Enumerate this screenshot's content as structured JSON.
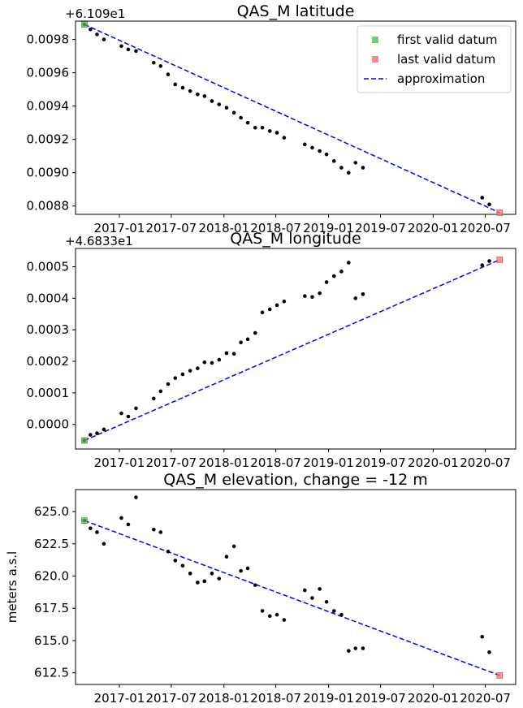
{
  "chart_data": [
    {
      "type": "scatter",
      "title": "QAS_M latitude",
      "offset_label": "+6.109e1",
      "ylabel": "",
      "xlabel": "",
      "ylim": [
        0.00875,
        0.00991
      ],
      "xlim": [
        "2016-08-01",
        "2020-10-15"
      ],
      "x_ticks": [
        "2017-01",
        "2017-07",
        "2018-01",
        "2018-07",
        "2019-01",
        "2019-07",
        "2020-01",
        "2020-07"
      ],
      "y_ticks": [
        0.0088,
        0.009,
        0.0092,
        0.0094,
        0.0096,
        0.0098
      ],
      "y_tick_labels": [
        "0.0088",
        "0.0090",
        "0.0092",
        "0.0094",
        "0.0096",
        "0.0098"
      ],
      "legend": {
        "placement": "top-right",
        "entries": [
          {
            "label": "first valid datum",
            "color": "#5cb85c",
            "marker": "square"
          },
          {
            "label": "last valid datum",
            "color": "#f07070",
            "marker": "square"
          },
          {
            "label": "approximation",
            "color": "#0000ff",
            "marker": "dashed-line"
          }
        ]
      },
      "first_valid": {
        "x": "2016-09-01",
        "y": 0.00989
      },
      "last_valid": {
        "x": "2020-08-20",
        "y": 0.00876
      },
      "approximation": [
        {
          "x": "2016-09-01",
          "y": 0.00989
        },
        {
          "x": "2020-08-20",
          "y": 0.00876
        }
      ],
      "points": [
        {
          "x": "2016-09-01",
          "y": 0.00989
        },
        {
          "x": "2016-09-22",
          "y": 0.00986
        },
        {
          "x": "2016-10-15",
          "y": 0.00983
        },
        {
          "x": "2016-11-08",
          "y": 0.0098
        },
        {
          "x": "2017-01-08",
          "y": 0.00976
        },
        {
          "x": "2017-02-01",
          "y": 0.00974
        },
        {
          "x": "2017-02-28",
          "y": 0.00973
        },
        {
          "x": "2017-05-01",
          "y": 0.00966
        },
        {
          "x": "2017-05-25",
          "y": 0.00964
        },
        {
          "x": "2017-06-20",
          "y": 0.00959
        },
        {
          "x": "2017-07-15",
          "y": 0.00953
        },
        {
          "x": "2017-08-10",
          "y": 0.00951
        },
        {
          "x": "2017-09-05",
          "y": 0.00949
        },
        {
          "x": "2017-10-01",
          "y": 0.00947
        },
        {
          "x": "2017-10-25",
          "y": 0.00946
        },
        {
          "x": "2017-11-20",
          "y": 0.00943
        },
        {
          "x": "2017-12-15",
          "y": 0.00941
        },
        {
          "x": "2018-01-10",
          "y": 0.00939
        },
        {
          "x": "2018-02-05",
          "y": 0.00936
        },
        {
          "x": "2018-03-01",
          "y": 0.00933
        },
        {
          "x": "2018-03-25",
          "y": 0.0093
        },
        {
          "x": "2018-04-20",
          "y": 0.00927
        },
        {
          "x": "2018-05-15",
          "y": 0.00927
        },
        {
          "x": "2018-06-10",
          "y": 0.00925
        },
        {
          "x": "2018-07-05",
          "y": 0.00924
        },
        {
          "x": "2018-07-30",
          "y": 0.00921
        },
        {
          "x": "2018-10-10",
          "y": 0.00917
        },
        {
          "x": "2018-11-05",
          "y": 0.00915
        },
        {
          "x": "2018-12-01",
          "y": 0.00913
        },
        {
          "x": "2018-12-25",
          "y": 0.00911
        },
        {
          "x": "2019-01-20",
          "y": 0.00907
        },
        {
          "x": "2019-02-15",
          "y": 0.00903
        },
        {
          "x": "2019-03-12",
          "y": 0.009
        },
        {
          "x": "2019-04-05",
          "y": 0.00906
        },
        {
          "x": "2019-05-01",
          "y": 0.00903
        },
        {
          "x": "2020-06-20",
          "y": 0.00885
        },
        {
          "x": "2020-07-15",
          "y": 0.00881
        }
      ]
    },
    {
      "type": "scatter",
      "title": "QAS_M longitude",
      "offset_label": "+4.6833e1",
      "ylabel": "",
      "xlabel": "",
      "ylim": [
        -7.8e-05,
        0.000558
      ],
      "xlim": [
        "2016-08-01",
        "2020-10-15"
      ],
      "x_ticks": [
        "2017-01",
        "2017-07",
        "2018-01",
        "2018-07",
        "2019-01",
        "2019-07",
        "2020-01",
        "2020-07"
      ],
      "y_ticks": [
        0.0,
        0.0001,
        0.0002,
        0.0003,
        0.0004,
        0.0005
      ],
      "y_tick_labels": [
        "0.0000",
        "0.0001",
        "0.0002",
        "0.0003",
        "0.0004",
        "0.0005"
      ],
      "first_valid": {
        "x": "2016-09-01",
        "y": -5.1e-05
      },
      "last_valid": {
        "x": "2020-08-20",
        "y": 0.000522
      },
      "approximation": [
        {
          "x": "2016-09-01",
          "y": -5.1e-05
        },
        {
          "x": "2020-08-20",
          "y": 0.000522
        }
      ],
      "points": [
        {
          "x": "2016-09-01",
          "y": -5.1e-05
        },
        {
          "x": "2016-09-22",
          "y": -3.3e-05
        },
        {
          "x": "2016-10-15",
          "y": -2.8e-05
        },
        {
          "x": "2016-11-08",
          "y": -1.6e-05
        },
        {
          "x": "2017-01-08",
          "y": 3.5e-05
        },
        {
          "x": "2017-02-01",
          "y": 2.5e-05
        },
        {
          "x": "2017-02-28",
          "y": 5.1e-05
        },
        {
          "x": "2017-05-01",
          "y": 8.2e-05
        },
        {
          "x": "2017-05-25",
          "y": 0.000105
        },
        {
          "x": "2017-06-20",
          "y": 0.000128
        },
        {
          "x": "2017-07-15",
          "y": 0.000147
        },
        {
          "x": "2017-08-10",
          "y": 0.000159
        },
        {
          "x": "2017-09-05",
          "y": 0.00017
        },
        {
          "x": "2017-10-01",
          "y": 0.000178
        },
        {
          "x": "2017-10-25",
          "y": 0.000197
        },
        {
          "x": "2017-11-20",
          "y": 0.000195
        },
        {
          "x": "2017-12-15",
          "y": 0.000205
        },
        {
          "x": "2018-01-10",
          "y": 0.000226
        },
        {
          "x": "2018-02-05",
          "y": 0.000224
        },
        {
          "x": "2018-03-01",
          "y": 0.00026
        },
        {
          "x": "2018-03-25",
          "y": 0.00027
        },
        {
          "x": "2018-04-20",
          "y": 0.00029
        },
        {
          "x": "2018-05-15",
          "y": 0.000355
        },
        {
          "x": "2018-06-10",
          "y": 0.000365
        },
        {
          "x": "2018-07-05",
          "y": 0.000378
        },
        {
          "x": "2018-07-30",
          "y": 0.00039
        },
        {
          "x": "2018-10-10",
          "y": 0.000407
        },
        {
          "x": "2018-11-05",
          "y": 0.000404
        },
        {
          "x": "2018-12-01",
          "y": 0.000416
        },
        {
          "x": "2018-12-25",
          "y": 0.000451
        },
        {
          "x": "2019-01-20",
          "y": 0.00047
        },
        {
          "x": "2019-02-15",
          "y": 0.000485
        },
        {
          "x": "2019-03-12",
          "y": 0.000513
        },
        {
          "x": "2019-04-05",
          "y": 0.0004
        },
        {
          "x": "2019-05-01",
          "y": 0.000413
        },
        {
          "x": "2020-06-20",
          "y": 0.000505
        },
        {
          "x": "2020-07-15",
          "y": 0.000518
        }
      ]
    },
    {
      "type": "scatter",
      "title": "QAS_M elevation, change = -12 m",
      "offset_label": "",
      "ylabel": "meters a.s.l",
      "xlabel": "",
      "ylim": [
        611.6,
        626.7
      ],
      "xlim": [
        "2016-08-01",
        "2020-10-15"
      ],
      "x_ticks": [
        "2017-01",
        "2017-07",
        "2018-01",
        "2018-07",
        "2019-01",
        "2019-07",
        "2020-01",
        "2020-07"
      ],
      "y_ticks": [
        612.5,
        615.0,
        617.5,
        620.0,
        622.5,
        625.0
      ],
      "y_tick_labels": [
        "612.5",
        "615.0",
        "617.5",
        "620.0",
        "622.5",
        "625.0"
      ],
      "first_valid": {
        "x": "2016-09-01",
        "y": 624.3
      },
      "last_valid": {
        "x": "2020-08-20",
        "y": 612.3
      },
      "approximation": [
        {
          "x": "2016-09-01",
          "y": 624.3
        },
        {
          "x": "2020-08-20",
          "y": 612.3
        }
      ],
      "points": [
        {
          "x": "2016-09-01",
          "y": 624.3
        },
        {
          "x": "2016-09-22",
          "y": 623.7
        },
        {
          "x": "2016-10-15",
          "y": 623.4
        },
        {
          "x": "2016-11-08",
          "y": 622.5
        },
        {
          "x": "2017-01-08",
          "y": 624.5
        },
        {
          "x": "2017-02-01",
          "y": 624.0
        },
        {
          "x": "2017-02-28",
          "y": 626.1
        },
        {
          "x": "2017-05-01",
          "y": 623.6
        },
        {
          "x": "2017-05-25",
          "y": 623.4
        },
        {
          "x": "2017-06-20",
          "y": 621.9
        },
        {
          "x": "2017-07-15",
          "y": 621.2
        },
        {
          "x": "2017-08-10",
          "y": 620.8
        },
        {
          "x": "2017-09-05",
          "y": 620.2
        },
        {
          "x": "2017-10-01",
          "y": 619.5
        },
        {
          "x": "2017-10-25",
          "y": 619.6
        },
        {
          "x": "2017-11-20",
          "y": 620.2
        },
        {
          "x": "2017-12-15",
          "y": 619.8
        },
        {
          "x": "2018-01-10",
          "y": 621.5
        },
        {
          "x": "2018-02-05",
          "y": 622.3
        },
        {
          "x": "2018-03-01",
          "y": 620.4
        },
        {
          "x": "2018-03-25",
          "y": 620.6
        },
        {
          "x": "2018-04-20",
          "y": 619.3
        },
        {
          "x": "2018-05-15",
          "y": 617.3
        },
        {
          "x": "2018-06-10",
          "y": 616.9
        },
        {
          "x": "2018-07-05",
          "y": 617.0
        },
        {
          "x": "2018-07-30",
          "y": 616.6
        },
        {
          "x": "2018-10-10",
          "y": 618.9
        },
        {
          "x": "2018-11-05",
          "y": 618.3
        },
        {
          "x": "2018-12-01",
          "y": 619.0
        },
        {
          "x": "2018-12-25",
          "y": 618.0
        },
        {
          "x": "2019-01-20",
          "y": 617.3
        },
        {
          "x": "2019-02-15",
          "y": 617.0
        },
        {
          "x": "2019-03-12",
          "y": 614.2
        },
        {
          "x": "2019-04-05",
          "y": 614.4
        },
        {
          "x": "2019-05-01",
          "y": 614.4
        },
        {
          "x": "2020-06-20",
          "y": 615.3
        },
        {
          "x": "2020-07-15",
          "y": 614.1
        }
      ]
    }
  ]
}
